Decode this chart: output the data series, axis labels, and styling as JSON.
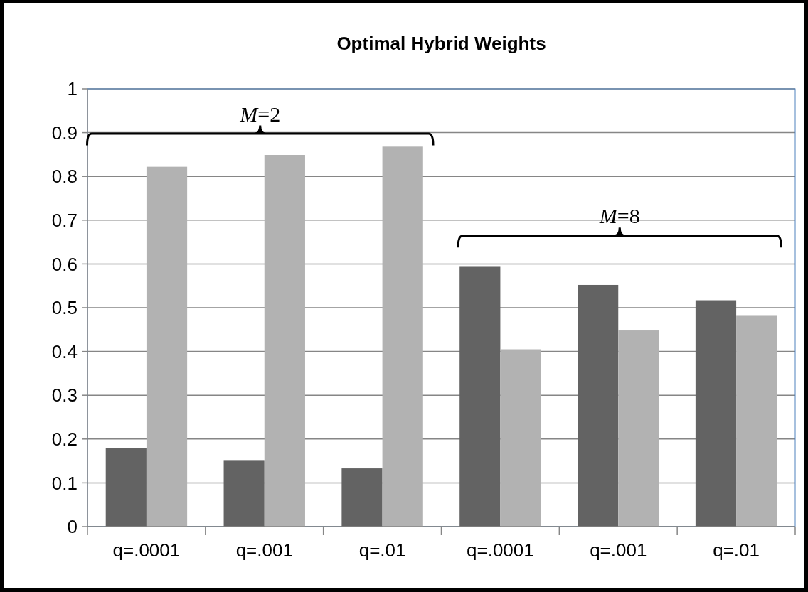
{
  "chart_data": {
    "type": "bar",
    "title": "Optimal Hybrid Weights",
    "categories": [
      "q=.0001",
      "q=.001",
      "q=.01",
      "q=.0001",
      "q=.001",
      "q=.01"
    ],
    "series": [
      {
        "color": "#636363",
        "values": [
          0.18,
          0.152,
          0.133,
          0.595,
          0.552,
          0.517
        ]
      },
      {
        "color": "#b2b2b2",
        "values": [
          0.822,
          0.849,
          0.868,
          0.405,
          0.448,
          0.483
        ]
      }
    ],
    "ylim": [
      0,
      1
    ],
    "yticks": [
      0,
      0.1,
      0.2,
      0.3,
      0.4,
      0.5,
      0.6,
      0.7,
      0.8,
      0.9,
      1
    ],
    "grid": "y",
    "annotations": [
      "M=2",
      "M=8"
    ]
  }
}
